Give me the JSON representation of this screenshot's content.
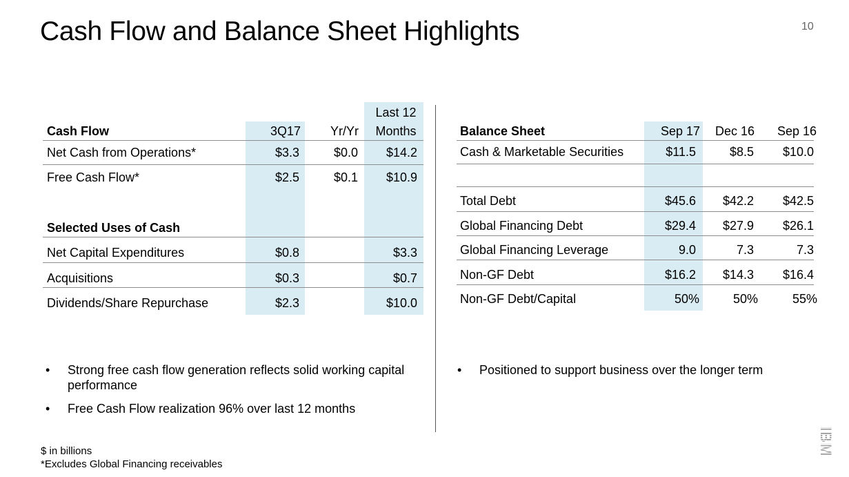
{
  "title": "Cash Flow and Balance Sheet Highlights",
  "page_number": "10",
  "cash_flow": {
    "header": "Cash Flow",
    "col_3q17": "3Q17",
    "col_yryr": "Yr/Yr",
    "col_ltm_line1": "Last 12",
    "col_ltm_line2": "Months",
    "rows": [
      {
        "label": "Net Cash from Operations*",
        "q": "$3.3",
        "yy": "$0.0",
        "ltm": "$14.2"
      },
      {
        "label": "Free Cash Flow*",
        "q": "$2.5",
        "yy": "$0.1",
        "ltm": "$10.9"
      }
    ],
    "uses_header": "Selected Uses of Cash",
    "uses_rows": [
      {
        "label": "Net Capital Expenditures",
        "q": "$0.8",
        "ltm": "$3.3"
      },
      {
        "label": "Acquisitions",
        "q": "$0.3",
        "ltm": "$0.7"
      },
      {
        "label": "Dividends/Share Repurchase",
        "q": "$2.3",
        "ltm": "$10.0"
      }
    ]
  },
  "balance_sheet": {
    "header": "Balance Sheet",
    "col1": "Sep 17",
    "col2": "Dec 16",
    "col3": "Sep 16",
    "cash_row": {
      "label": "Cash & Marketable Securities",
      "v1": "$11.5",
      "v2": "$8.5",
      "v3": "$10.0"
    },
    "rows": [
      {
        "label": "Total Debt",
        "v1": "$45.6",
        "v2": "$42.2",
        "v3": "$42.5"
      },
      {
        "label": "Global Financing Debt",
        "v1": "$29.4",
        "v2": "$27.9",
        "v3": "$26.1"
      },
      {
        "label": "Global Financing Leverage",
        "v1": "9.0",
        "v2": "7.3",
        "v3": "7.3"
      },
      {
        "label": "Non-GF Debt",
        "v1": "$16.2",
        "v2": "$14.3",
        "v3": "$16.4"
      },
      {
        "label": "Non-GF Debt/Capital",
        "v1": "50%",
        "v2": "50%",
        "v3": "55%"
      }
    ]
  },
  "bullets_left": [
    "Strong free cash flow generation reflects solid working capital performance",
    "Free Cash Flow realization 96% over last 12 months"
  ],
  "bullets_right": [
    "Positioned to support business over the longer term"
  ],
  "bullet_symbol": "•",
  "footnotes": [
    "$ in billions",
    "*Excludes Global Financing receivables"
  ],
  "logo_icon": "ibm-logo-icon",
  "colors": {
    "highlight": "#d9ecf4",
    "rule": "#8c8c8c"
  }
}
